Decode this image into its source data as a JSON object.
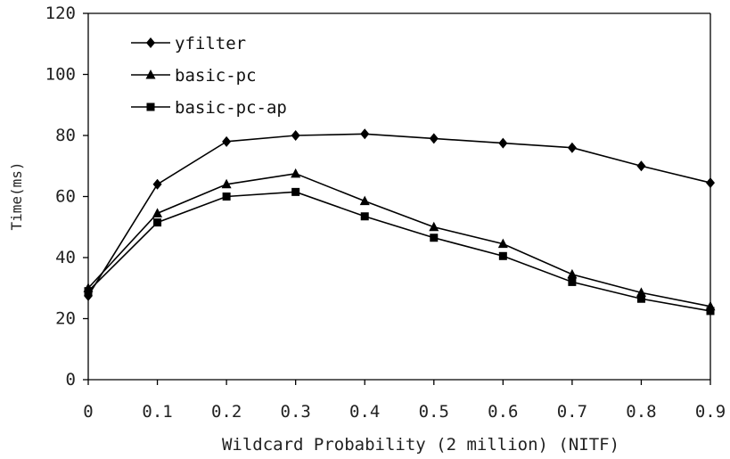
{
  "chart_data": {
    "type": "line",
    "title": "",
    "xlabel": "Wildcard Probability (2 million) (NITF)",
    "ylabel": "Time(ms)",
    "x": [
      0,
      0.1,
      0.2,
      0.3,
      0.4,
      0.5,
      0.6,
      0.7,
      0.8,
      0.9
    ],
    "x_tick_labels": [
      "0",
      "0.1",
      "0.2",
      "0.3",
      "0.4",
      "0.5",
      "0.6",
      "0.7",
      "0.8",
      "0.9"
    ],
    "y_tick_labels": [
      "0",
      "20",
      "40",
      "60",
      "80",
      "100",
      "120"
    ],
    "xlim": [
      0,
      0.9
    ],
    "ylim": [
      0,
      120
    ],
    "grid": false,
    "legend_position": "top-left",
    "series": [
      {
        "name": "yfilter",
        "marker": "diamond",
        "values": [
          27.5,
          64,
          78,
          80,
          80.5,
          79,
          77.5,
          76,
          70,
          64.5
        ]
      },
      {
        "name": "basic-pc",
        "marker": "triangle",
        "values": [
          30,
          54.5,
          64,
          67.5,
          58.5,
          50,
          44.5,
          34.5,
          28.5,
          24
        ]
      },
      {
        "name": "basic-pc-ap",
        "marker": "square",
        "values": [
          29,
          51.5,
          60,
          61.5,
          53.5,
          46.5,
          40.5,
          32,
          26.5,
          22.5
        ]
      }
    ],
    "colors": {
      "line": "#000000",
      "text": "#222222",
      "background": "#ffffff"
    }
  }
}
